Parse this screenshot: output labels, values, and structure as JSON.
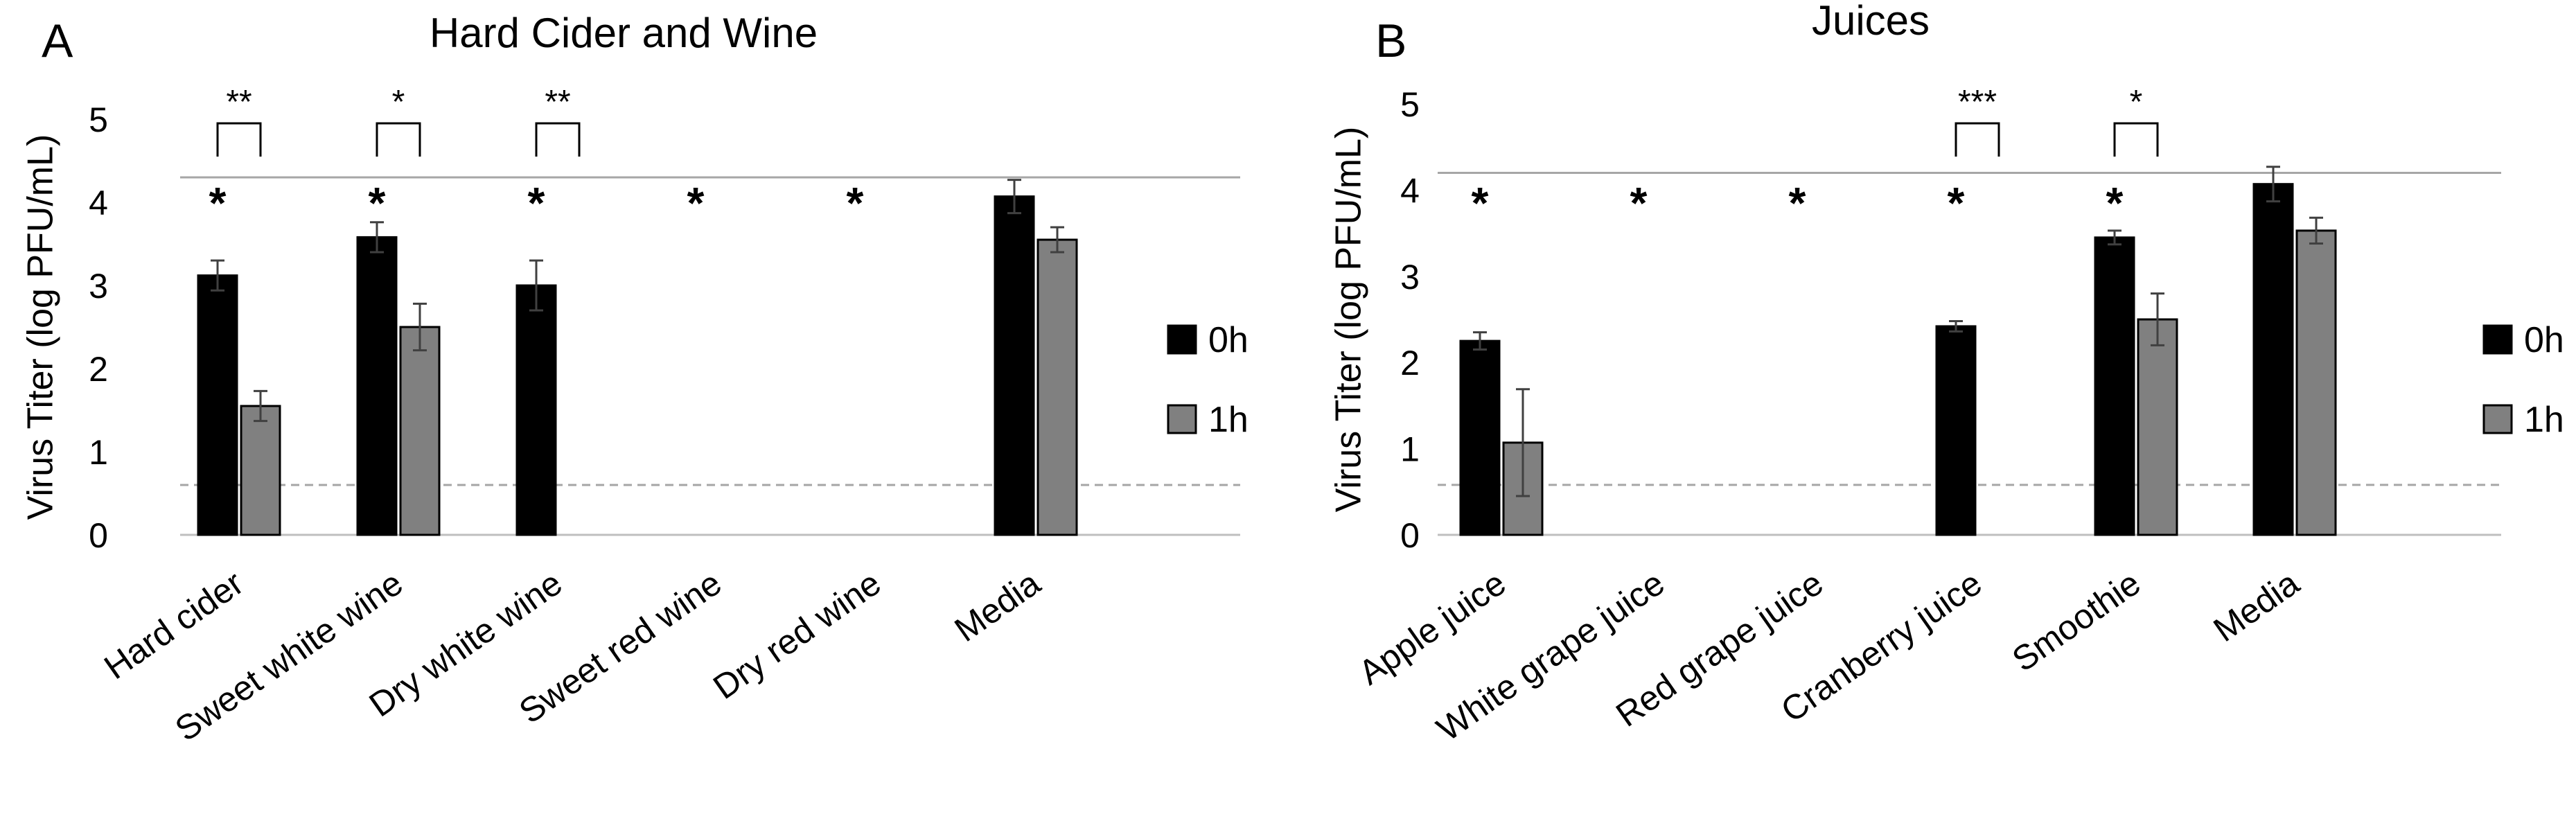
{
  "chart_data": [
    {
      "panel_label": "A",
      "type": "bar",
      "title": "Hard Cider and Wine",
      "ylabel": "Virus Titer (log PFU/mL)",
      "xlabel": "",
      "ylim": [
        0,
        5
      ],
      "yticks": [
        "0",
        "1",
        "2",
        "3",
        "4",
        "5"
      ],
      "categories": [
        "Hard cider",
        "Sweet white wine",
        "Dry white wine",
        "Sweet red wine",
        "Dry red wine",
        "Media"
      ],
      "series": [
        {
          "name": "0h",
          "color": "#000000",
          "values": [
            3.12,
            3.58,
            3.0,
            null,
            null,
            4.07
          ],
          "errors": [
            0.18,
            0.18,
            0.3,
            null,
            null,
            0.2
          ]
        },
        {
          "name": "1h",
          "color": "#808080",
          "values": [
            1.55,
            2.5,
            null,
            null,
            null,
            3.55
          ],
          "errors": [
            0.18,
            0.28,
            null,
            null,
            null,
            0.15
          ]
        }
      ],
      "upper_reference": 4.3,
      "detection_limit": 0.6,
      "asterisks": [
        "*",
        "*",
        "*",
        "*",
        "*",
        ""
      ],
      "brackets": [
        {
          "category": 0,
          "label": "**"
        },
        {
          "category": 1,
          "label": "*"
        },
        {
          "category": 2,
          "label": "**"
        }
      ],
      "legend": [
        "0h",
        "1h"
      ],
      "legend_position": "right"
    },
    {
      "panel_label": "B",
      "type": "bar",
      "title": "Juices",
      "ylabel": "Virus Titer (log PFU/mL)",
      "xlabel": "",
      "ylim": [
        0,
        5
      ],
      "yticks": [
        "0",
        "1",
        "2",
        "3",
        "4",
        "5"
      ],
      "categories": [
        "Apple juice",
        "White grape juice",
        "Red grape juice",
        "Cranberry juice",
        "Smoothie",
        "Media"
      ],
      "series": [
        {
          "name": "0h",
          "color": "#000000",
          "values": [
            2.25,
            null,
            null,
            2.42,
            3.45,
            4.07
          ],
          "errors": [
            0.1,
            null,
            null,
            0.06,
            0.08,
            0.2
          ]
        },
        {
          "name": "1h",
          "color": "#808080",
          "values": [
            1.07,
            null,
            null,
            null,
            2.5,
            3.53
          ],
          "errors": [
            0.62,
            null,
            null,
            null,
            0.3,
            0.15
          ]
        }
      ],
      "upper_reference": 4.2,
      "detection_limit": 0.58,
      "asterisks": [
        "*",
        "*",
        "*",
        "*",
        "*",
        ""
      ],
      "brackets": [
        {
          "category": 3,
          "label": "***"
        },
        {
          "category": 4,
          "label": "*"
        }
      ],
      "legend": [
        "0h",
        "1h"
      ],
      "legend_position": "right"
    }
  ]
}
